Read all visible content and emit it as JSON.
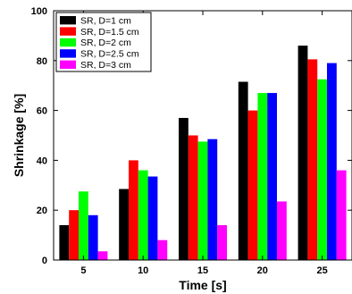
{
  "chart_data": {
    "type": "bar",
    "categories": [
      "5",
      "10",
      "15",
      "20",
      "25"
    ],
    "series": [
      {
        "name": "SR, D=1 cm",
        "color": "#000000",
        "values": [
          14,
          28.5,
          57,
          71.5,
          86
        ]
      },
      {
        "name": "SR, D=1.5 cm",
        "color": "#ff0000",
        "values": [
          20,
          40,
          50,
          60,
          80.5
        ]
      },
      {
        "name": "SR, D=2 cm",
        "color": "#00ff00",
        "values": [
          27.5,
          36,
          47.5,
          67,
          72.5
        ]
      },
      {
        "name": "SR, D=2.5 cm",
        "color": "#0000ff",
        "values": [
          18,
          33.5,
          48.5,
          67,
          79
        ]
      },
      {
        "name": "SR, D=3 cm",
        "color": "#ff00ff",
        "values": [
          3.5,
          8,
          14,
          23.5,
          36
        ]
      }
    ],
    "xlabel": "Time [s]",
    "ylabel": "Shrinkage [%]",
    "ylim": [
      0,
      100
    ],
    "yticks": [
      "0",
      "20",
      "40",
      "60",
      "80",
      "100"
    ],
    "legend_position": "top-left",
    "grid": false
  }
}
